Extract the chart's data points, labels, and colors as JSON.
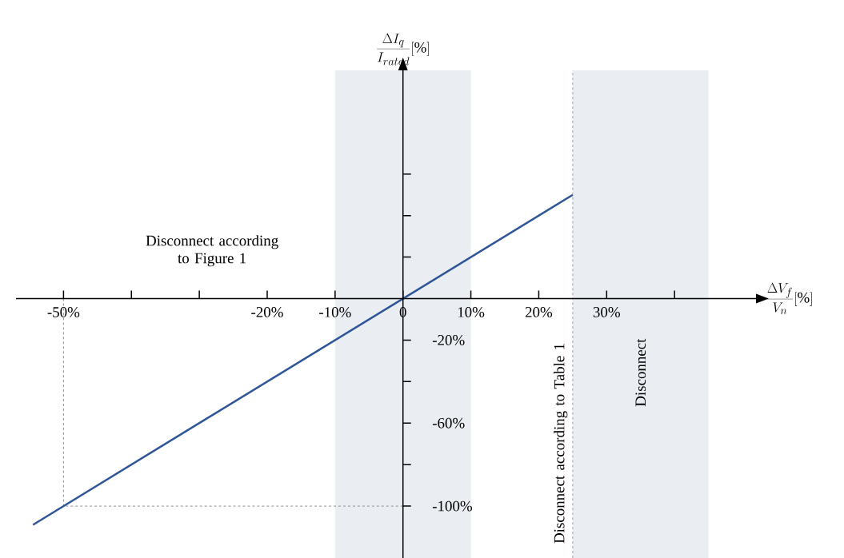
{
  "chart_data": {
    "type": "line",
    "xlabel": "\\frac{\\Delta V_f}{V_n}[\\%]",
    "ylabel": "\\frac{\\Delta I_q}{I_{rated}}[\\%]",
    "x": [
      -54.5,
      25
    ],
    "values": [
      -109,
      50
    ],
    "color": "#2e5597",
    "line_style": "solid",
    "xlim": [
      -57,
      52
    ],
    "ylim": [
      -125,
      110
    ],
    "xticks": [
      {
        "value": -50,
        "label": "-50%"
      },
      {
        "value": -40,
        "label": null
      },
      {
        "value": -30,
        "label": null
      },
      {
        "value": -20,
        "label": "-20%"
      },
      {
        "value": -10,
        "label": "-10%"
      },
      0,
      {
        "value": 10,
        "label": "10%"
      },
      {
        "value": 20,
        "label": "20%"
      },
      {
        "value": 30,
        "label": "30%"
      },
      {
        "value": 40,
        "label": null
      }
    ],
    "yticks": [
      {
        "value": -100,
        "label": "-100%"
      },
      {
        "value": -80,
        "label": null
      },
      {
        "value": -60,
        "label": "-60%"
      },
      {
        "value": -40,
        "label": null
      },
      {
        "value": -20,
        "label": "-20%"
      },
      {
        "value": 20,
        "label": null
      },
      {
        "value": 40,
        "label": null
      },
      {
        "value": 60,
        "label": null
      }
    ],
    "bands": [
      {
        "axis": "x",
        "from": -10,
        "to": 10,
        "color": "#eaeef2"
      },
      {
        "axis": "x",
        "from": 25,
        "to": 45,
        "label": "Disconnect",
        "color": "#eaeef2"
      }
    ],
    "ref_lines": [
      {
        "axis": "x",
        "value": 25,
        "label": "Disconnect according to Table 1",
        "color": "#a0a0a0",
        "line_style": "dashed"
      },
      {
        "axis": "x",
        "value": -50,
        "color": "#909090",
        "line_style": "dashed"
      },
      {
        "axis": "y",
        "value": -100,
        "color": "#909090",
        "line_style": "dashed"
      }
    ],
    "annotations": [
      "Disconnect according to Figure 1"
    ]
  }
}
